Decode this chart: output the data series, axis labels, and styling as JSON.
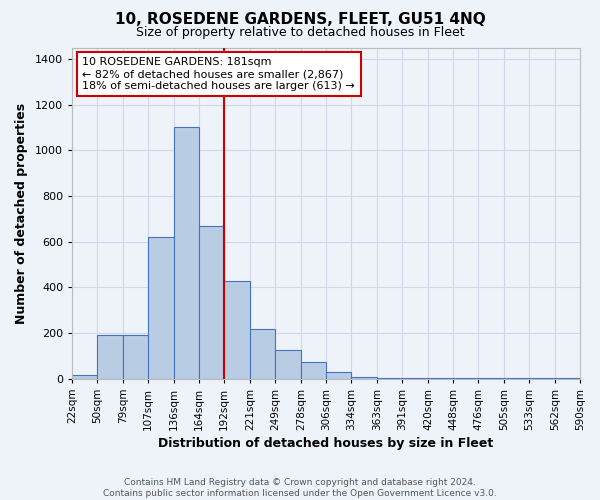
{
  "title": "10, ROSEDENE GARDENS, FLEET, GU51 4NQ",
  "subtitle": "Size of property relative to detached houses in Fleet",
  "xlabel": "Distribution of detached houses by size in Fleet",
  "ylabel": "Number of detached properties",
  "footer1": "Contains HM Land Registry data © Crown copyright and database right 2024.",
  "footer2": "Contains public sector information licensed under the Open Government Licence v3.0.",
  "bin_labels": [
    "22sqm",
    "50sqm",
    "79sqm",
    "107sqm",
    "136sqm",
    "164sqm",
    "192sqm",
    "221sqm",
    "249sqm",
    "278sqm",
    "306sqm",
    "334sqm",
    "363sqm",
    "391sqm",
    "420sqm",
    "448sqm",
    "476sqm",
    "505sqm",
    "533sqm",
    "562sqm",
    "590sqm"
  ],
  "bin_edges": [
    22,
    50,
    79,
    107,
    136,
    164,
    192,
    221,
    249,
    278,
    306,
    334,
    363,
    391,
    420,
    448,
    476,
    505,
    533,
    562,
    590
  ],
  "bar_heights": [
    15,
    190,
    190,
    620,
    1100,
    670,
    430,
    220,
    125,
    75,
    30,
    10,
    5,
    5,
    5,
    5,
    5,
    5,
    5,
    5
  ],
  "bar_color": "#b8cce4",
  "bar_edge_color": "#4472c4",
  "bg_color": "#eef2f9",
  "grid_color": "#d0d8e8",
  "vline_x": 192,
  "vline_color": "#cc0000",
  "annotation_title": "10 ROSEDENE GARDENS: 181sqm",
  "annotation_line1": "← 82% of detached houses are smaller (2,867)",
  "annotation_line2": "18% of semi-detached houses are larger (613) →",
  "ylim": [
    0,
    1450
  ],
  "yticks": [
    0,
    200,
    400,
    600,
    800,
    1000,
    1200,
    1400
  ],
  "xlim_left": 22,
  "xlim_right": 590
}
